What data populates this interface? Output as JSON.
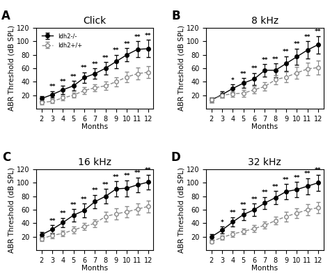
{
  "chart_data": [
    {
      "type": "line",
      "title": "Click",
      "xlabel": "Months",
      "ylabel": "ABR Threshold (dB SPL)",
      "x": [
        2,
        3,
        4,
        5,
        6,
        7,
        8,
        9,
        10,
        11,
        12
      ],
      "xlim": [
        1.5,
        12.5
      ],
      "xticks": [
        2,
        3,
        4,
        5,
        6,
        7,
        8,
        9,
        10,
        11,
        12
      ],
      "ylim": [
        0,
        120
      ],
      "yticks": [
        20,
        40,
        60,
        80,
        100,
        120
      ],
      "series": [
        {
          "name": "Idh2-/-",
          "color": "#000000",
          "marker": "o",
          "line_style": "solid",
          "values": [
            15,
            21,
            28,
            34,
            46,
            52,
            60,
            70,
            80,
            88,
            89
          ],
          "errors": [
            4,
            5,
            6,
            7,
            8,
            8,
            9,
            10,
            10,
            12,
            13
          ]
        },
        {
          "name": "Idh2+/+",
          "color": "#888888",
          "marker": "o",
          "line_style": "dashed",
          "values": [
            9,
            11,
            16,
            20,
            27,
            31,
            34,
            40,
            47,
            52,
            54
          ],
          "errors": [
            3,
            3,
            4,
            4,
            5,
            5,
            6,
            7,
            8,
            9,
            9
          ]
        }
      ],
      "annotations": [
        {
          "text": "A"
        },
        {
          "x": 3,
          "text": "**"
        },
        {
          "x": 4,
          "text": "**"
        },
        {
          "x": 5,
          "text": "**"
        },
        {
          "x": 6,
          "text": "**"
        },
        {
          "x": 7,
          "text": "**"
        },
        {
          "x": 8,
          "text": "**"
        },
        {
          "x": 9,
          "text": "**"
        },
        {
          "x": 10,
          "text": "**"
        },
        {
          "x": 11,
          "text": "**"
        },
        {
          "x": 12,
          "text": "**"
        }
      ],
      "legend": "upper left"
    },
    {
      "type": "line",
      "title": "8 kHz",
      "xlabel": "Months",
      "ylabel": "ABR Threshold (dB SPL)",
      "x": [
        2,
        3,
        4,
        5,
        6,
        7,
        8,
        9,
        10,
        11,
        12
      ],
      "xlim": [
        1.5,
        12.5
      ],
      "xticks": [
        2,
        3,
        4,
        5,
        6,
        7,
        8,
        9,
        10,
        11,
        12
      ],
      "ylim": [
        0,
        120
      ],
      "yticks": [
        20,
        40,
        60,
        80,
        100,
        120
      ],
      "series": [
        {
          "name": "Idh2-/-",
          "color": "#000000",
          "marker": "o",
          "line_style": "solid",
          "values": [
            13,
            21,
            30,
            38,
            44,
            57,
            57,
            67,
            77,
            87,
            95
          ],
          "errors": [
            4,
            5,
            6,
            7,
            9,
            9,
            10,
            11,
            12,
            13,
            13
          ]
        },
        {
          "name": "Idh2+/+",
          "color": "#888888",
          "marker": "o",
          "line_style": "dashed",
          "values": [
            13,
            20,
            22,
            23,
            28,
            33,
            43,
            47,
            53,
            59,
            61
          ],
          "errors": [
            4,
            4,
            4,
            5,
            5,
            6,
            7,
            8,
            9,
            9,
            10
          ]
        }
      ],
      "annotations": [
        {
          "text": "B"
        },
        {
          "x": 4,
          "text": "*"
        },
        {
          "x": 5,
          "text": "**"
        },
        {
          "x": 6,
          "text": "**"
        },
        {
          "x": 7,
          "text": "**"
        },
        {
          "x": 8,
          "text": "**"
        },
        {
          "x": 9,
          "text": "**"
        },
        {
          "x": 10,
          "text": "**"
        },
        {
          "x": 11,
          "text": "**"
        },
        {
          "x": 12,
          "text": "**"
        }
      ]
    },
    {
      "type": "line",
      "title": "16 kHz",
      "xlabel": "Months",
      "ylabel": "ABR Threshold (dB SPL)",
      "x": [
        2,
        3,
        4,
        5,
        6,
        7,
        8,
        9,
        10,
        11,
        12
      ],
      "xlim": [
        1.5,
        12.5
      ],
      "xticks": [
        2,
        3,
        4,
        5,
        6,
        7,
        8,
        9,
        10,
        11,
        12
      ],
      "ylim": [
        0,
        120
      ],
      "yticks": [
        20,
        40,
        60,
        80,
        100,
        120
      ],
      "series": [
        {
          "name": "Idh2-/-",
          "color": "#000000",
          "marker": "o",
          "line_style": "solid",
          "values": [
            23,
            31,
            41,
            52,
            59,
            72,
            80,
            91,
            92,
            97,
            101
          ],
          "errors": [
            4,
            6,
            7,
            9,
            10,
            10,
            11,
            11,
            12,
            11,
            11
          ]
        },
        {
          "name": "Idh2+/+",
          "color": "#888888",
          "marker": "o",
          "line_style": "dashed",
          "values": [
            17,
            22,
            25,
            30,
            35,
            40,
            50,
            54,
            57,
            61,
            65
          ],
          "errors": [
            3,
            4,
            4,
            5,
            5,
            6,
            7,
            8,
            8,
            8,
            9
          ]
        }
      ],
      "annotations": [
        {
          "text": "C"
        },
        {
          "x": 3,
          "text": "**"
        },
        {
          "x": 4,
          "text": "**"
        },
        {
          "x": 5,
          "text": "**"
        },
        {
          "x": 6,
          "text": "**"
        },
        {
          "x": 7,
          "text": "**"
        },
        {
          "x": 8,
          "text": "**"
        },
        {
          "x": 9,
          "text": "**"
        },
        {
          "x": 10,
          "text": "**"
        },
        {
          "x": 11,
          "text": "**"
        },
        {
          "x": 12,
          "text": "**"
        }
      ]
    },
    {
      "type": "line",
      "title": "32 kHz",
      "xlabel": "Months",
      "ylabel": "ABR Threshold (dB SPL)",
      "x": [
        2,
        3,
        4,
        5,
        6,
        7,
        8,
        9,
        10,
        11,
        12
      ],
      "xlim": [
        1.5,
        12.5
      ],
      "xticks": [
        2,
        3,
        4,
        5,
        6,
        7,
        8,
        9,
        10,
        11,
        12
      ],
      "ylim": [
        0,
        120
      ],
      "yticks": [
        20,
        40,
        60,
        80,
        100,
        120
      ],
      "series": [
        {
          "name": "Idh2-/-",
          "color": "#000000",
          "marker": "o",
          "line_style": "solid",
          "values": [
            20,
            30,
            42,
            53,
            60,
            70,
            78,
            87,
            90,
            95,
            100
          ],
          "errors": [
            4,
            5,
            7,
            8,
            9,
            9,
            10,
            11,
            11,
            12,
            12
          ]
        },
        {
          "name": "Idh2+/+",
          "color": "#888888",
          "marker": "o",
          "line_style": "dashed",
          "values": [
            13,
            19,
            24,
            28,
            32,
            37,
            44,
            50,
            55,
            60,
            63
          ],
          "errors": [
            3,
            3,
            4,
            4,
            5,
            5,
            6,
            7,
            7,
            8,
            8
          ]
        }
      ],
      "annotations": [
        {
          "text": "D"
        },
        {
          "x": 3,
          "text": "*"
        },
        {
          "x": 4,
          "text": "**"
        },
        {
          "x": 5,
          "text": "**"
        },
        {
          "x": 6,
          "text": "**"
        },
        {
          "x": 7,
          "text": "**"
        },
        {
          "x": 8,
          "text": "**"
        },
        {
          "x": 9,
          "text": "**"
        },
        {
          "x": 10,
          "text": "**"
        },
        {
          "x": 11,
          "text": "**"
        },
        {
          "x": 12,
          "text": "**"
        }
      ]
    }
  ]
}
